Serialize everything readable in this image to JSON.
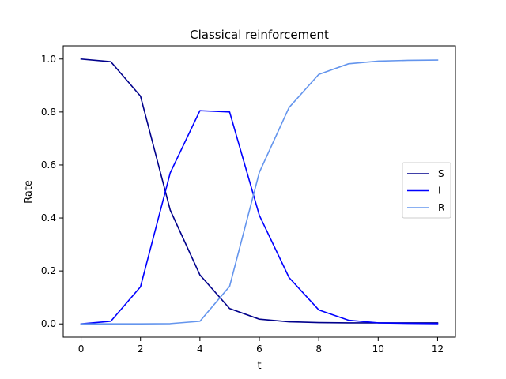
{
  "chart_data": {
    "type": "line",
    "title": "Classical reinforcement",
    "xlabel": "t",
    "ylabel": "Rate",
    "xlim": [
      -0.6,
      12.6
    ],
    "ylim": [
      -0.05,
      1.05
    ],
    "xticks": [
      0,
      2,
      4,
      6,
      8,
      10,
      12
    ],
    "yticks": [
      0.0,
      0.2,
      0.4,
      0.6,
      0.8,
      1.0
    ],
    "xtick_labels": [
      "0",
      "2",
      "4",
      "6",
      "8",
      "10",
      "12"
    ],
    "ytick_labels": [
      "0.0",
      "0.2",
      "0.4",
      "0.6",
      "0.8",
      "1.0"
    ],
    "grid": false,
    "legend_position": "center-right",
    "x": [
      0,
      1,
      2,
      3,
      4,
      5,
      6,
      7,
      8,
      9,
      10,
      11,
      12
    ],
    "series": [
      {
        "name": "S",
        "color": "#00008b",
        "values": [
          1.0,
          0.99,
          0.86,
          0.43,
          0.185,
          0.058,
          0.018,
          0.008,
          0.005,
          0.004,
          0.004,
          0.004,
          0.004
        ]
      },
      {
        "name": "I",
        "color": "#0000ff",
        "values": [
          0.0,
          0.01,
          0.14,
          0.57,
          0.805,
          0.8,
          0.41,
          0.175,
          0.053,
          0.014,
          0.004,
          0.002,
          0.001
        ]
      },
      {
        "name": "R",
        "color": "#6495ed",
        "values": [
          0.0,
          0.0,
          0.0,
          0.001,
          0.01,
          0.142,
          0.572,
          0.817,
          0.942,
          0.982,
          0.992,
          0.995,
          0.996
        ]
      }
    ]
  }
}
